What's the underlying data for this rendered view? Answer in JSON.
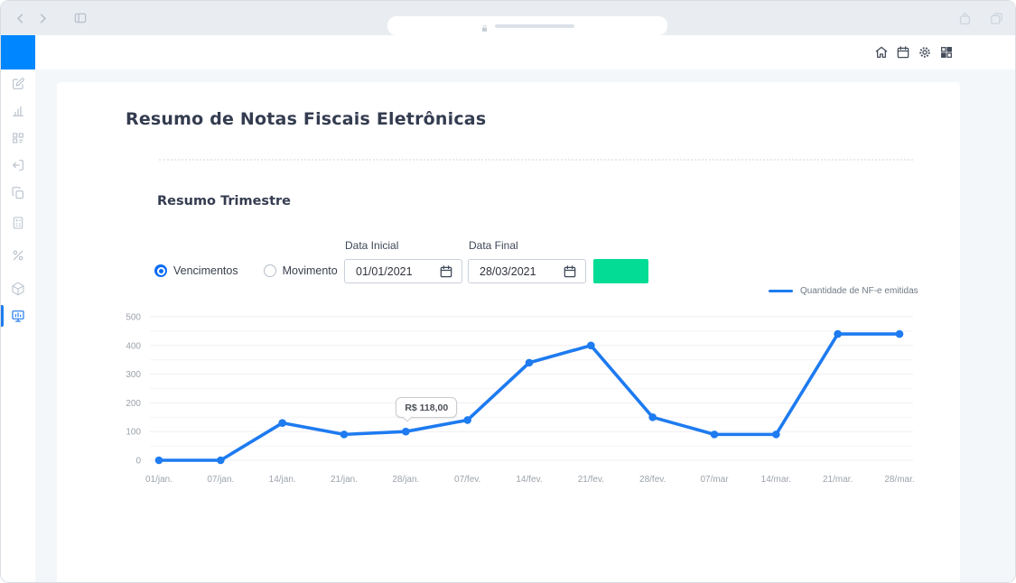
{
  "browser": {
    "nav_icons": [
      "back-chevron",
      "forward-chevron",
      "sidebar-toggle"
    ],
    "address_bar": {
      "lock_icon": "lock-icon",
      "url_text": ""
    },
    "window_icons": [
      "share-icon",
      "tabs-icon"
    ]
  },
  "header": {
    "logo_color": "#0087ff",
    "icons": [
      "home-icon",
      "calendar-icon",
      "gear-icon",
      "apps-grid-icon"
    ]
  },
  "sidebar": {
    "items": [
      {
        "icon": "edit-icon",
        "active": false
      },
      {
        "icon": "bar-chart-icon",
        "active": false
      },
      {
        "icon": "grid-list-icon",
        "active": false
      },
      {
        "icon": "logout-icon",
        "active": false
      },
      {
        "icon": "copy-icon",
        "active": false
      },
      {
        "icon": "calculator-icon",
        "active": false
      },
      {
        "icon": "percent-icon",
        "active": false
      },
      {
        "icon": "cube-icon",
        "active": false
      },
      {
        "icon": "presentation-icon",
        "active": true
      }
    ],
    "active_color": "#1e7bf0"
  },
  "page": {
    "title": "Resumo de Notas Fiscais Eletrônicas",
    "section_title": "Resumo Trimestre",
    "filters": {
      "radios": [
        {
          "label": "Vencimentos",
          "selected": true
        },
        {
          "label": "Movimento",
          "selected": false
        }
      ],
      "date_start": {
        "label": "Data Inicial",
        "value": "01/01/2021"
      },
      "date_end": {
        "label": "Data Final",
        "value": "28/03/2021"
      },
      "apply_button_label": "",
      "apply_button_color": "#03dc94"
    }
  },
  "chart_data": {
    "type": "line",
    "x": [
      "01/jan.",
      "07/jan.",
      "14/jan.",
      "21/jan.",
      "28/jan.",
      "07/fev.",
      "14/fev.",
      "21/fev.",
      "28/fev.",
      "07/mar",
      "14/mar.",
      "21/mar.",
      "28/mar."
    ],
    "series": [
      {
        "name": "Quantidade de NF-e emitidas",
        "values": [
          0,
          0,
          130,
          90,
          100,
          140,
          340,
          400,
          150,
          90,
          90,
          440,
          440
        ]
      }
    ],
    "yticks": [
      0,
      100,
      200,
      300,
      400,
      500
    ],
    "ylim": [
      0,
      500
    ],
    "grid": true,
    "legend_position": "top-right",
    "line_color": "#1e7bf0",
    "axis_text_color": "#9ca3ab",
    "tooltip": {
      "text": "R$ 118,00",
      "point_index": 4
    }
  }
}
